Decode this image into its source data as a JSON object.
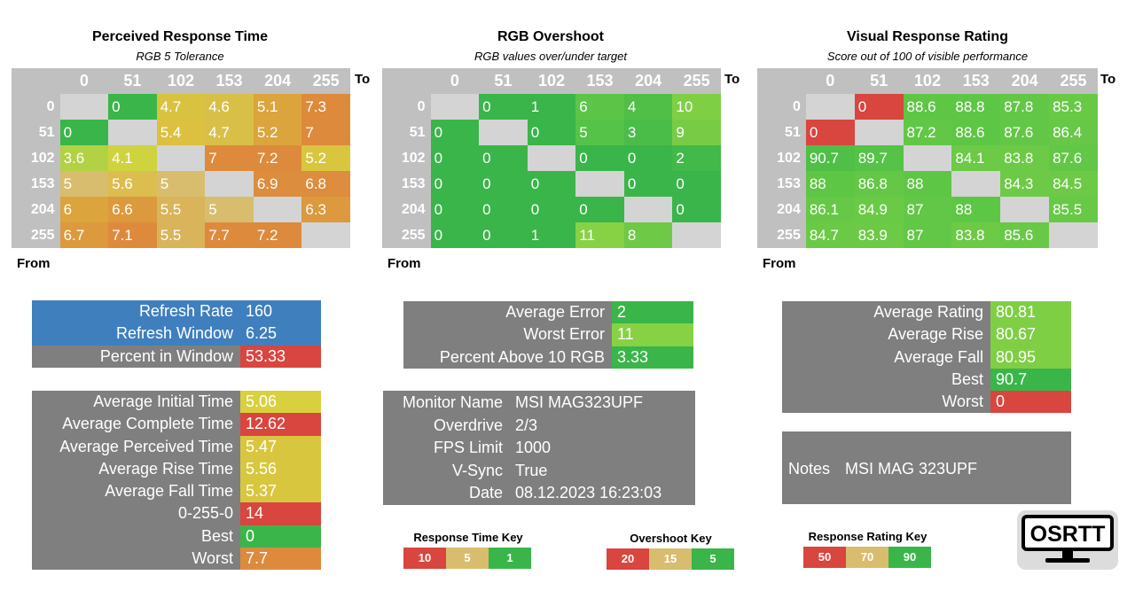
{
  "colors": {
    "grey_cell": "#d4d4d4",
    "panel_grey": "#7f7f7f",
    "panel_blue": "#3f7fbe",
    "red": "#d9453f",
    "orange": "#de8a3c",
    "yellow": "#d9d03f",
    "tan": "#d8bd6e",
    "green": "#3ab54a",
    "lightgreen": "#7fcf45"
  },
  "matrices": {
    "prt": {
      "title": "Perceived Response Time",
      "subtitle": "RGB 5 Tolerance",
      "to_label": "To",
      "from_label": "From",
      "headers": [
        "0",
        "51",
        "102",
        "153",
        "204",
        "255"
      ],
      "rows": [
        {
          "label": "0",
          "cells": [
            [
              "",
              "#d4d4d4"
            ],
            [
              "0",
              "#3ab54a"
            ],
            [
              "4.7",
              "#d9c23f"
            ],
            [
              "4.6",
              "#d8c048"
            ],
            [
              "5.1",
              "#dba43d"
            ],
            [
              "7.3",
              "#de8a3c"
            ]
          ]
        },
        {
          "label": "51",
          "cells": [
            [
              "0",
              "#3ab54a"
            ],
            [
              "",
              "#d4d4d4"
            ],
            [
              "5.4",
              "#dbc13f"
            ],
            [
              "4.7",
              "#d8c048"
            ],
            [
              "5.2",
              "#dba43d"
            ],
            [
              "7",
              "#de8a3c"
            ]
          ]
        },
        {
          "label": "102",
          "cells": [
            [
              "3.6",
              "#b3d144"
            ],
            [
              "4.1",
              "#cfd340"
            ],
            [
              "",
              "#d4d4d4"
            ],
            [
              "7",
              "#de8a3c"
            ],
            [
              "7.2",
              "#de8a3c"
            ],
            [
              "5.2",
              "#d9c63f"
            ]
          ]
        },
        {
          "label": "153",
          "cells": [
            [
              "5",
              "#d8bd6e"
            ],
            [
              "5.6",
              "#dbbd50"
            ],
            [
              "5",
              "#d8bd6e"
            ],
            [
              "",
              "#d4d4d4"
            ],
            [
              "6.9",
              "#dc8d3e"
            ],
            [
              "6.8",
              "#dc8d3e"
            ]
          ]
        },
        {
          "label": "204",
          "cells": [
            [
              "6",
              "#dba43d"
            ],
            [
              "6.6",
              "#dc993d"
            ],
            [
              "5.5",
              "#d9b45a"
            ],
            [
              "5",
              "#d8bd6e"
            ],
            [
              "",
              "#d4d4d4"
            ],
            [
              "6.3",
              "#dc993d"
            ]
          ]
        },
        {
          "label": "255",
          "cells": [
            [
              "6.7",
              "#dc993d"
            ],
            [
              "7.1",
              "#de8a3c"
            ],
            [
              "5.5",
              "#d9b45a"
            ],
            [
              "7.7",
              "#de8a3c"
            ],
            [
              "7.2",
              "#de8a3c"
            ],
            [
              "",
              "#d4d4d4"
            ]
          ]
        }
      ]
    },
    "overshoot": {
      "title": "RGB Overshoot",
      "subtitle": "RGB values over/under target",
      "to_label": "To",
      "from_label": "From",
      "headers": [
        "0",
        "51",
        "102",
        "153",
        "204",
        "255"
      ],
      "rows": [
        {
          "label": "0",
          "cells": [
            [
              "",
              "#d4d4d4"
            ],
            [
              "0",
              "#3ab54a"
            ],
            [
              "1",
              "#3ab54a"
            ],
            [
              "6",
              "#5cc547"
            ],
            [
              "4",
              "#4fbf47"
            ],
            [
              "10",
              "#7fcf45"
            ]
          ]
        },
        {
          "label": "51",
          "cells": [
            [
              "0",
              "#3ab54a"
            ],
            [
              "",
              "#d4d4d4"
            ],
            [
              "0",
              "#3ab54a"
            ],
            [
              "5",
              "#54c347"
            ],
            [
              "3",
              "#4abd48"
            ],
            [
              "9",
              "#78cc45"
            ]
          ]
        },
        {
          "label": "102",
          "cells": [
            [
              "0",
              "#3ab54a"
            ],
            [
              "0",
              "#3ab54a"
            ],
            [
              "",
              "#d4d4d4"
            ],
            [
              "0",
              "#3ab54a"
            ],
            [
              "0",
              "#3ab54a"
            ],
            [
              "2",
              "#42b948"
            ]
          ]
        },
        {
          "label": "153",
          "cells": [
            [
              "0",
              "#3ab54a"
            ],
            [
              "0",
              "#3ab54a"
            ],
            [
              "0",
              "#3ab54a"
            ],
            [
              "",
              "#d4d4d4"
            ],
            [
              "0",
              "#3ab54a"
            ],
            [
              "0",
              "#3ab54a"
            ]
          ]
        },
        {
          "label": "204",
          "cells": [
            [
              "0",
              "#3ab54a"
            ],
            [
              "0",
              "#3ab54a"
            ],
            [
              "0",
              "#3ab54a"
            ],
            [
              "0",
              "#3ab54a"
            ],
            [
              "",
              "#d4d4d4"
            ],
            [
              "0",
              "#3ab54a"
            ]
          ]
        },
        {
          "label": "255",
          "cells": [
            [
              "0",
              "#3ab54a"
            ],
            [
              "0",
              "#3ab54a"
            ],
            [
              "1",
              "#3ab54a"
            ],
            [
              "11",
              "#86d244"
            ],
            [
              "8",
              "#6ec946"
            ],
            [
              "",
              "#d4d4d4"
            ]
          ]
        }
      ]
    },
    "vrr": {
      "title": "Visual Response Rating",
      "subtitle": "Score out of 100 of visible performance",
      "to_label": "To",
      "from_label": "From",
      "headers": [
        "0",
        "51",
        "102",
        "153",
        "204",
        "255"
      ],
      "rows": [
        {
          "label": "0",
          "cells": [
            [
              "",
              "#d4d4d4"
            ],
            [
              "0",
              "#d9453f"
            ],
            [
              "88.6",
              "#5ec645"
            ],
            [
              "88.8",
              "#5ec645"
            ],
            [
              "87.8",
              "#62c746"
            ],
            [
              "85.3",
              "#68c946"
            ]
          ]
        },
        {
          "label": "51",
          "cells": [
            [
              "0",
              "#d9453f"
            ],
            [
              "",
              "#d4d4d4"
            ],
            [
              "87.2",
              "#62c746"
            ],
            [
              "88.6",
              "#5ec645"
            ],
            [
              "87.6",
              "#62c746"
            ],
            [
              "86.4",
              "#66c846"
            ]
          ]
        },
        {
          "label": "102",
          "cells": [
            [
              "90.7",
              "#4fbf47"
            ],
            [
              "89.7",
              "#56c247"
            ],
            [
              "",
              "#d4d4d4"
            ],
            [
              "84.1",
              "#6cca46"
            ],
            [
              "83.8",
              "#6cca46"
            ],
            [
              "87.6",
              "#62c746"
            ]
          ]
        },
        {
          "label": "153",
          "cells": [
            [
              "88",
              "#5ec645"
            ],
            [
              "86.8",
              "#64c746"
            ],
            [
              "88",
              "#5ec645"
            ],
            [
              "",
              "#d4d4d4"
            ],
            [
              "84.3",
              "#6cca46"
            ],
            [
              "84.5",
              "#6cca46"
            ]
          ]
        },
        {
          "label": "204",
          "cells": [
            [
              "86.1",
              "#66c846"
            ],
            [
              "84.9",
              "#6aca46"
            ],
            [
              "87",
              "#62c746"
            ],
            [
              "88",
              "#5ec645"
            ],
            [
              "",
              "#d4d4d4"
            ],
            [
              "85.5",
              "#68c946"
            ]
          ]
        },
        {
          "label": "255",
          "cells": [
            [
              "84.7",
              "#6aca46"
            ],
            [
              "83.9",
              "#6cca46"
            ],
            [
              "87",
              "#62c746"
            ],
            [
              "83.8",
              "#6cca46"
            ],
            [
              "85.6",
              "#68c946"
            ],
            [
              "",
              "#d4d4d4"
            ]
          ]
        }
      ]
    }
  },
  "refresh_panel": [
    {
      "label": "Refresh Rate",
      "value": "160",
      "label_bg": "#3f7fbe",
      "value_bg": "#3f7fbe"
    },
    {
      "label": "Refresh Window",
      "value": "6.25",
      "label_bg": "#3f7fbe",
      "value_bg": "#3f7fbe"
    },
    {
      "label": "Percent in Window",
      "value": "53.33",
      "label_bg": "#7f7f7f",
      "value_bg": "#d9453f"
    }
  ],
  "time_panel": [
    {
      "label": "Average Initial Time",
      "value": "5.06",
      "value_bg": "#d9d03f"
    },
    {
      "label": "Average Complete Time",
      "value": "12.62",
      "value_bg": "#d9453f"
    },
    {
      "label": "Average Perceived Time",
      "value": "5.47",
      "value_bg": "#d9c63f"
    },
    {
      "label": "Average Rise Time",
      "value": "5.56",
      "value_bg": "#d9c63f"
    },
    {
      "label": "Average Fall Time",
      "value": "5.37",
      "value_bg": "#d9c63f"
    },
    {
      "label": "0-255-0",
      "value": "14",
      "value_bg": "#d9453f"
    },
    {
      "label": "Best",
      "value": "0",
      "value_bg": "#3ab54a"
    },
    {
      "label": "Worst",
      "value": "7.7",
      "value_bg": "#de8a3c"
    }
  ],
  "error_panel": [
    {
      "label": "Average Error",
      "value": "2",
      "value_bg": "#3ab54a"
    },
    {
      "label": "Worst Error",
      "value": "11",
      "value_bg": "#86d244"
    },
    {
      "label": "Percent Above 10 RGB",
      "value": "3.33",
      "value_bg": "#3ab54a"
    }
  ],
  "monitor_panel": [
    {
      "label": "Monitor Name",
      "value": "MSI MAG323UPF"
    },
    {
      "label": "Overdrive",
      "value": "2/3"
    },
    {
      "label": "FPS Limit",
      "value": "1000"
    },
    {
      "label": "V-Sync",
      "value": "True"
    },
    {
      "label": "Date",
      "value": "08.12.2023 16:23:03"
    }
  ],
  "rating_panel": [
    {
      "label": "Average Rating",
      "value": "80.81",
      "value_bg": "#7fcf45"
    },
    {
      "label": "Average Rise",
      "value": "80.67",
      "value_bg": "#7fcf45"
    },
    {
      "label": "Average Fall",
      "value": "80.95",
      "value_bg": "#7fcf45"
    },
    {
      "label": "Best",
      "value": "90.7",
      "value_bg": "#3ab54a"
    },
    {
      "label": "Worst",
      "value": "0",
      "value_bg": "#d9453f"
    }
  ],
  "notes": {
    "label": "Notes",
    "value": "MSI MAG 323UPF"
  },
  "keys": {
    "response_time": {
      "title": "Response Time Key",
      "cells": [
        [
          "10",
          "#d9453f"
        ],
        [
          "5",
          "#d8bd6e"
        ],
        [
          "1",
          "#3ab54a"
        ]
      ]
    },
    "overshoot": {
      "title": "Overshoot Key",
      "cells": [
        [
          "20",
          "#d9453f"
        ],
        [
          "15",
          "#d8bd6e"
        ],
        [
          "5",
          "#3ab54a"
        ]
      ]
    },
    "rating": {
      "title": "Response Rating Key",
      "cells": [
        [
          "50",
          "#d9453f"
        ],
        [
          "70",
          "#d8bd6e"
        ],
        [
          "90",
          "#3ab54a"
        ]
      ]
    }
  },
  "logo": {
    "text": "OSRTT",
    "icon": "monitor-logo-icon"
  }
}
